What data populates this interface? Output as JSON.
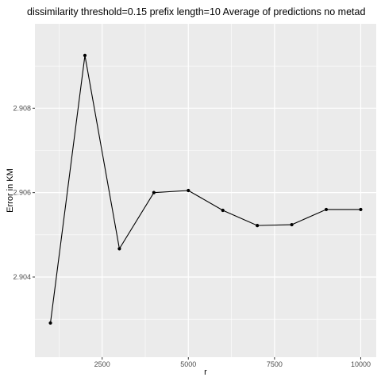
{
  "chart_data": {
    "type": "line",
    "title": "dissimilarity threshold=0.15  prefix length=10  Average of predictions  no metad",
    "xlabel": "r",
    "ylabel": "Error in KM",
    "xlim": [
      550,
      10450
    ],
    "ylim": [
      2.9021,
      2.91
    ],
    "x_ticks": [
      2500,
      5000,
      7500,
      10000
    ],
    "x_tick_labels": [
      "2500",
      "5000",
      "7500",
      "10000"
    ],
    "y_ticks": [
      2.904,
      2.906,
      2.908
    ],
    "y_tick_labels": [
      "2.904",
      "2.906",
      "2.908"
    ],
    "grid": true,
    "legend": "none",
    "panel_background": "#ebebeb",
    "grid_color": "#ffffff",
    "line_color": "#000000",
    "series": [
      {
        "x": [
          1000,
          2000,
          3000,
          4000,
          5000,
          6000,
          7000,
          8000,
          9000,
          10000
        ],
        "y": [
          2.90291,
          2.90925,
          2.90467,
          2.906,
          2.90605,
          2.90558,
          2.90522,
          2.90524,
          2.9056,
          2.9056
        ]
      }
    ]
  }
}
